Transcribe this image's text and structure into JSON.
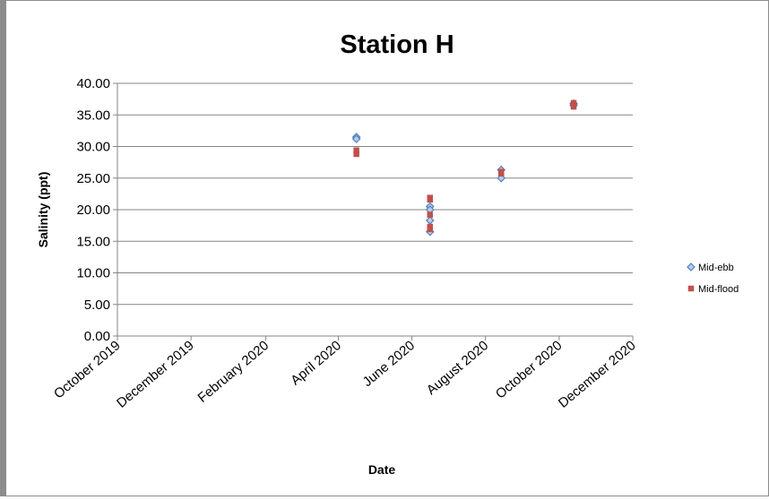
{
  "chart_data": {
    "type": "scatter",
    "title": "Station H",
    "xlabel": "Date",
    "ylabel": "Salinity (ppt)",
    "ylim": [
      0,
      40
    ],
    "xlim": [
      "2019-10-01",
      "2020-12-01"
    ],
    "y_ticks": [
      "0.00",
      "5.00",
      "10.00",
      "15.00",
      "20.00",
      "25.00",
      "30.00",
      "35.00",
      "40.00"
    ],
    "x_ticks": [
      {
        "date": "2019-10-01",
        "label": "October 2019"
      },
      {
        "date": "2019-12-01",
        "label": "December 2019"
      },
      {
        "date": "2020-02-01",
        "label": "February 2020"
      },
      {
        "date": "2020-04-01",
        "label": "April 2020"
      },
      {
        "date": "2020-06-01",
        "label": "June 2020"
      },
      {
        "date": "2020-08-01",
        "label": "August 2020"
      },
      {
        "date": "2020-10-01",
        "label": "October 2020"
      },
      {
        "date": "2020-12-01",
        "label": "December 2020"
      }
    ],
    "grid": "horizontal",
    "legend_position": "right",
    "series": [
      {
        "name": "Mid-ebb",
        "marker": "diamond",
        "color": "#4f81bd",
        "points": [
          {
            "x": "2020-04-16",
            "y": 31.5
          },
          {
            "x": "2020-04-16",
            "y": 31.2
          },
          {
            "x": "2020-06-16",
            "y": 20.5
          },
          {
            "x": "2020-06-16",
            "y": 20.0
          },
          {
            "x": "2020-06-16",
            "y": 18.3
          },
          {
            "x": "2020-06-16",
            "y": 16.5
          },
          {
            "x": "2020-08-14",
            "y": 25.0
          },
          {
            "x": "2020-08-14",
            "y": 26.3
          },
          {
            "x": "2020-10-13",
            "y": 36.8
          },
          {
            "x": "2020-10-13",
            "y": 36.5
          }
        ]
      },
      {
        "name": "Mid-flood",
        "marker": "square",
        "color": "#c0504d",
        "points": [
          {
            "x": "2020-04-16",
            "y": 29.4
          },
          {
            "x": "2020-04-16",
            "y": 28.8
          },
          {
            "x": "2020-06-16",
            "y": 21.9
          },
          {
            "x": "2020-06-16",
            "y": 21.6
          },
          {
            "x": "2020-06-16",
            "y": 19.2
          },
          {
            "x": "2020-06-16",
            "y": 17.3
          },
          {
            "x": "2020-06-16",
            "y": 16.9
          },
          {
            "x": "2020-08-14",
            "y": 26.0
          },
          {
            "x": "2020-08-14",
            "y": 25.7
          },
          {
            "x": "2020-10-13",
            "y": 36.9
          },
          {
            "x": "2020-10-13",
            "y": 36.3
          }
        ]
      }
    ]
  }
}
